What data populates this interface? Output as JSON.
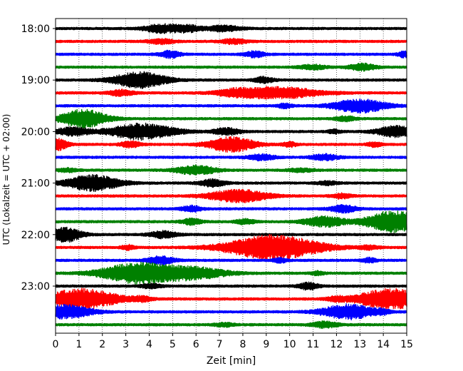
{
  "chart_data": {
    "type": "line",
    "title": "",
    "xlabel": "Zeit  [min]",
    "ylabel": "UTC (Lokalzeit = UTC + 02:00)",
    "xlim": [
      0,
      15
    ],
    "x_ticks": [
      0,
      1,
      2,
      3,
      4,
      5,
      6,
      7,
      8,
      9,
      10,
      11,
      12,
      13,
      14,
      15
    ],
    "y_tick_labels": [
      "18:00",
      "19:00",
      "20:00",
      "21:00",
      "22:00",
      "23:00"
    ],
    "grid": "vertical dotted",
    "trace_interval_min": 15,
    "colors": [
      "#000000",
      "#ff0000",
      "#0000ff",
      "#008000"
    ],
    "traces": [
      {
        "time": "18:00",
        "color": "#000000",
        "events": [
          [
            4.5,
            0.7,
            0.5
          ],
          [
            5.6,
            0.6,
            0.4
          ],
          [
            7.2,
            0.5,
            0.5
          ]
        ]
      },
      {
        "time": "18:15",
        "color": "#ff0000",
        "events": [
          [
            4.5,
            0.4,
            0.4
          ],
          [
            7.6,
            0.4,
            0.4
          ]
        ]
      },
      {
        "time": "18:30",
        "color": "#0000ff",
        "events": [
          [
            4.9,
            0.6,
            0.3
          ],
          [
            8.5,
            0.5,
            0.3
          ],
          [
            14.9,
            0.5,
            0.2
          ]
        ]
      },
      {
        "time": "18:45",
        "color": "#008000",
        "events": [
          [
            11.0,
            0.4,
            0.4
          ],
          [
            13.1,
            0.6,
            0.4
          ]
        ]
      },
      {
        "time": "19:00",
        "color": "#000000",
        "events": [
          [
            3.6,
            1.4,
            0.8
          ],
          [
            8.9,
            0.5,
            0.3
          ]
        ]
      },
      {
        "time": "19:15",
        "color": "#ff0000",
        "events": [
          [
            9.4,
            1.0,
            1.3
          ],
          [
            2.8,
            0.5,
            0.4
          ],
          [
            7.6,
            0.4,
            0.5
          ]
        ]
      },
      {
        "time": "19:30",
        "color": "#0000ff",
        "events": [
          [
            13.0,
            1.2,
            0.8
          ],
          [
            9.8,
            0.4,
            0.2
          ]
        ]
      },
      {
        "time": "19:45",
        "color": "#008000",
        "events": [
          [
            1.2,
            1.6,
            0.7
          ],
          [
            12.4,
            0.4,
            0.3
          ]
        ]
      },
      {
        "time": "20:00",
        "color": "#000000",
        "events": [
          [
            3.7,
            1.4,
            1.0
          ],
          [
            0.7,
            0.7,
            0.5
          ],
          [
            7.3,
            0.6,
            0.4
          ],
          [
            11.9,
            0.3,
            0.2
          ],
          [
            14.6,
            1.0,
            0.6
          ]
        ]
      },
      {
        "time": "20:15",
        "color": "#ff0000",
        "events": [
          [
            0.1,
            1.0,
            0.3
          ],
          [
            7.5,
            1.3,
            0.7
          ],
          [
            3.2,
            0.5,
            0.3
          ],
          [
            10.0,
            0.4,
            0.2
          ],
          [
            13.6,
            0.4,
            0.2
          ]
        ]
      },
      {
        "time": "20:30",
        "color": "#0000ff",
        "events": [
          [
            8.8,
            0.5,
            0.4
          ],
          [
            11.5,
            0.5,
            0.4
          ]
        ]
      },
      {
        "time": "20:45",
        "color": "#008000",
        "events": [
          [
            6.0,
            0.8,
            0.6
          ],
          [
            0.5,
            0.3,
            0.3
          ],
          [
            10.5,
            0.3,
            0.4
          ]
        ]
      },
      {
        "time": "21:00",
        "color": "#000000",
        "events": [
          [
            1.6,
            1.4,
            0.8
          ],
          [
            6.7,
            0.6,
            0.4
          ],
          [
            11.6,
            0.3,
            0.3
          ]
        ]
      },
      {
        "time": "21:15",
        "color": "#ff0000",
        "events": [
          [
            7.8,
            1.1,
            0.9
          ],
          [
            12.2,
            0.4,
            0.3
          ]
        ]
      },
      {
        "time": "21:30",
        "color": "#0000ff",
        "events": [
          [
            5.8,
            0.5,
            0.3
          ],
          [
            12.3,
            0.6,
            0.4
          ]
        ]
      },
      {
        "time": "21:45",
        "color": "#008000",
        "events": [
          [
            14.4,
            1.9,
            0.8
          ],
          [
            11.5,
            0.9,
            0.6
          ],
          [
            8.1,
            0.4,
            0.3
          ],
          [
            5.8,
            0.5,
            0.3
          ]
        ]
      },
      {
        "time": "22:00",
        "color": "#000000",
        "events": [
          [
            0.4,
            1.3,
            0.5
          ],
          [
            4.6,
            0.6,
            0.4
          ]
        ]
      },
      {
        "time": "22:15",
        "color": "#ff0000",
        "events": [
          [
            9.3,
            2.2,
            1.4
          ],
          [
            3.1,
            0.4,
            0.2
          ],
          [
            13.4,
            0.3,
            0.3
          ]
        ]
      },
      {
        "time": "22:30",
        "color": "#0000ff",
        "events": [
          [
            4.5,
            0.7,
            0.4
          ],
          [
            9.6,
            0.4,
            0.2
          ],
          [
            13.4,
            0.4,
            0.2
          ]
        ]
      },
      {
        "time": "22:45",
        "color": "#008000",
        "events": [
          [
            3.5,
            1.8,
            1.1
          ],
          [
            5.9,
            1.0,
            1.0
          ],
          [
            11.2,
            0.3,
            0.2
          ]
        ]
      },
      {
        "time": "23:00",
        "color": "#000000",
        "events": [
          [
            10.8,
            0.6,
            0.3
          ],
          [
            4.1,
            0.4,
            0.3
          ]
        ]
      },
      {
        "time": "23:15",
        "color": "#ff0000",
        "events": [
          [
            1.1,
            1.8,
            1.1
          ],
          [
            14.3,
            1.8,
            1.0
          ],
          [
            3.7,
            0.4,
            0.3
          ],
          [
            12.0,
            0.4,
            0.3
          ]
        ]
      },
      {
        "time": "23:30",
        "color": "#0000ff",
        "events": [
          [
            0.4,
            1.2,
            0.8
          ],
          [
            12.5,
            1.3,
            0.8
          ],
          [
            14.0,
            0.3,
            0.2
          ]
        ]
      },
      {
        "time": "23:45",
        "color": "#008000",
        "events": [
          [
            11.5,
            0.5,
            0.4
          ],
          [
            7.2,
            0.3,
            0.3
          ]
        ]
      }
    ]
  }
}
